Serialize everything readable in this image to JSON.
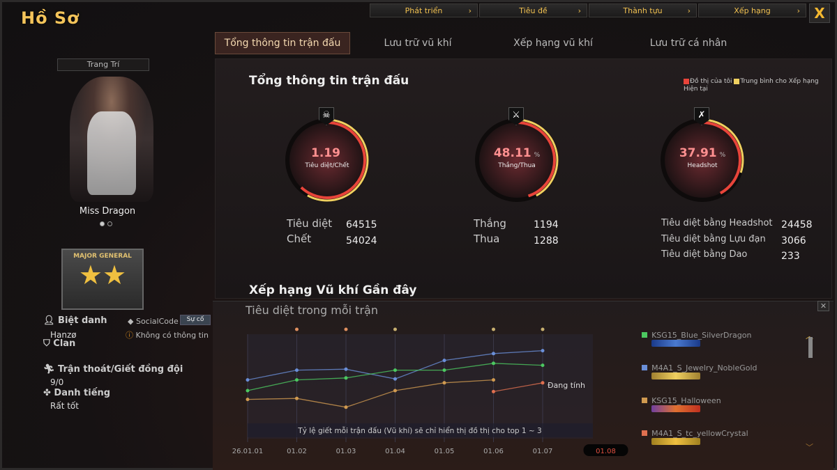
{
  "window": {
    "title": "Hồ Sơ",
    "close_label": "X"
  },
  "top_nav": [
    {
      "label": "Phát triển"
    },
    {
      "label": "Tiêu đề"
    },
    {
      "label": "Thành tựu"
    },
    {
      "label": "Xếp hạng"
    }
  ],
  "tabs": [
    {
      "label": "Tổng thông tin trận đấu",
      "active": true
    },
    {
      "label": "Lưu trữ vũ khí"
    },
    {
      "label": "Xếp hạng vũ khí"
    },
    {
      "label": "Lưu trữ cá nhân"
    }
  ],
  "profile": {
    "decorate_label": "Trang Trí",
    "character_name": "Miss Dragon",
    "rank_title": "MAJOR GENERAL",
    "rank_stars": "★★",
    "nickname_label": "Biệt danh",
    "nickname": "Hanzø",
    "socialcode_label": "SocialCode",
    "socialcode_button": "Sự cố",
    "socialcode_value": "Không có thông tin",
    "clan_label": "Clan",
    "escape_label": "Trận thoát/Giết đồng đội",
    "escape_value": "9/0",
    "reputation_label": "Danh tiếng",
    "reputation_value": "Rất tốt"
  },
  "summary": {
    "title": "Tổng thông tin trận đấu",
    "legend_mine": "Đồ thị của tôi",
    "legend_avg": "Trung bình cho Xếp hạng Hiện tại",
    "colors": {
      "mine": "#e8443a",
      "avg": "#f0d060"
    },
    "gauges": [
      {
        "icon": "skull-icon",
        "value": "1.19",
        "unit": "",
        "label": "Tiêu diệt/Chết",
        "mine_fill": 0.62,
        "avg_fill": 0.58
      },
      {
        "icon": "crossed-swords-icon",
        "value": "48.11",
        "unit": "%",
        "label": "Thắng/Thua",
        "mine_fill": 0.45,
        "avg_fill": 0.42
      },
      {
        "icon": "rifle-icon",
        "value": "37.91",
        "unit": "%",
        "label": "Headshot",
        "mine_fill": 0.42,
        "avg_fill": 0.3
      }
    ],
    "stats": [
      [
        {
          "label": "Tiêu diệt",
          "value": "64515"
        },
        {
          "label": "Chết",
          "value": "54024"
        }
      ],
      [
        {
          "label": "Thắng",
          "value": "1194"
        },
        {
          "label": "Thua",
          "value": "1288"
        }
      ],
      [
        {
          "label": "Tiêu diệt bằng Headshot",
          "value": "24458"
        },
        {
          "label": "Tiêu diệt bằng Lựu đạn",
          "value": "3066"
        },
        {
          "label": "Tiêu diệt bằng Dao",
          "value": "233"
        }
      ]
    ]
  },
  "recent": {
    "title": "Xếp hạng Vũ khí Gần đây",
    "chart_title": "Tiêu diệt trong mỗi trận",
    "note": "Tỷ lệ giết mỗi trận đấu (Vũ khí) sẽ chỉ hiển thị đồ thị cho top 1 ~ 3",
    "pending_label": "Đang tính"
  },
  "chart_data": {
    "type": "line",
    "title": "Tiêu diệt trong mỗi trận",
    "categories": [
      "26.01.01",
      "01.02",
      "01.03",
      "01.04",
      "01.05",
      "01.06",
      "01.07",
      "01.08"
    ],
    "selected_category": "01.08",
    "ylim": [
      0,
      100
    ],
    "grid": true,
    "series": [
      {
        "name": "M4A1_S_Jewelry_NobleGold",
        "color": "#6a8fd8",
        "values": [
          46,
          56,
          57,
          47,
          66,
          73,
          76,
          null
        ]
      },
      {
        "name": "KSG15_Blue_SilverDragon",
        "color": "#4cc860",
        "values": [
          35,
          46,
          48,
          56,
          56,
          63,
          61,
          null
        ]
      },
      {
        "name": "KSG15_Halloween",
        "color": "#d09a50",
        "values": [
          26,
          27,
          18,
          35,
          43,
          46,
          null,
          null
        ]
      },
      {
        "name": "M4A1_S_tc_yellowCrystal",
        "color": "#e07050",
        "values": [
          null,
          null,
          null,
          null,
          null,
          34,
          43,
          null
        ]
      }
    ],
    "top_markers": [
      {
        "category": "01.02",
        "color": "#e09060"
      },
      {
        "category": "01.03",
        "color": "#e09060"
      },
      {
        "category": "01.04",
        "color": "#c8b070"
      },
      {
        "category": "01.06",
        "color": "#c8b070"
      },
      {
        "category": "01.07",
        "color": "#c8b070"
      }
    ]
  },
  "weapons": [
    {
      "name": "KSG15_Blue_SilverDragon",
      "color": "#4cc860",
      "img": "linear-gradient(90deg,#1a3a8a,#4a7ad0,#1a3a8a)"
    },
    {
      "name": "M4A1_S_Jewelry_NobleGold",
      "color": "#6a8fd8",
      "img": "linear-gradient(90deg,#a08030,#f0d060,#a08030)"
    },
    {
      "name": "KSG15_Halloween",
      "color": "#d09a50",
      "img": "linear-gradient(90deg,#7040a0,#e07030,#c03020)"
    },
    {
      "name": "M4A1_S_tc_yellowCrystal",
      "color": "#e07050",
      "img": "linear-gradient(90deg,#a08020,#f0c040,#a08020)"
    }
  ]
}
